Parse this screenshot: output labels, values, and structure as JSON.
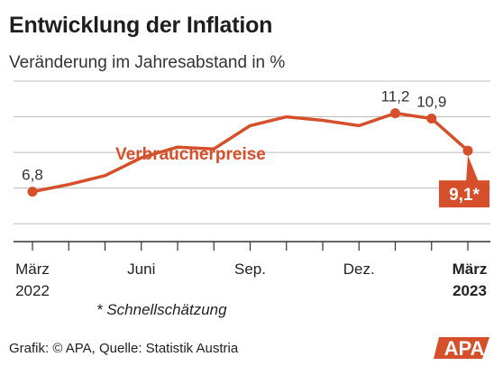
{
  "title": "Entwicklung der Inflation",
  "subtitle": "Veränderung im Jahresabstand in %",
  "footnote": "* Schnellschätzung",
  "source": "Grafik: © APA, Quelle: Statistik Austria",
  "logo_text": "APA",
  "colors": {
    "series": "#d5502a",
    "grid": "#bdbdbd",
    "axis": "#333333",
    "callout_text": "#ffffff"
  },
  "chart_data": {
    "type": "line",
    "grid": true,
    "series": [
      {
        "name": "Verbraucherpreise",
        "x": [
          "2022-03",
          "2022-04",
          "2022-05",
          "2022-06",
          "2022-07",
          "2022-08",
          "2022-09",
          "2022-10",
          "2022-11",
          "2022-12",
          "2023-01",
          "2023-02",
          "2023-03"
        ],
        "values": [
          6.8,
          7.2,
          7.7,
          8.7,
          9.3,
          9.2,
          10.5,
          11.0,
          10.8,
          10.5,
          11.2,
          10.9,
          9.1
        ]
      }
    ],
    "data_labels": [
      {
        "index": 0,
        "text": "6,8",
        "style": "plain"
      },
      {
        "index": 10,
        "text": "11,2",
        "style": "plain"
      },
      {
        "index": 11,
        "text": "10,9",
        "style": "plain"
      },
      {
        "index": 12,
        "text": "9,1*",
        "style": "callout"
      }
    ],
    "x_ticks": [
      {
        "index": 0,
        "line1": "März",
        "line2": "2022",
        "bold": false
      },
      {
        "index": 3,
        "line1": "Juni",
        "line2": "",
        "bold": false
      },
      {
        "index": 6,
        "line1": "Sep.",
        "line2": "",
        "bold": false
      },
      {
        "index": 9,
        "line1": "Dez.",
        "line2": "",
        "bold": false
      },
      {
        "index": 12,
        "line1": "März",
        "line2": "2023",
        "bold": true
      }
    ],
    "ylim": [
      4,
      13
    ],
    "gridlines": [
      5,
      7,
      9,
      11,
      13
    ]
  }
}
